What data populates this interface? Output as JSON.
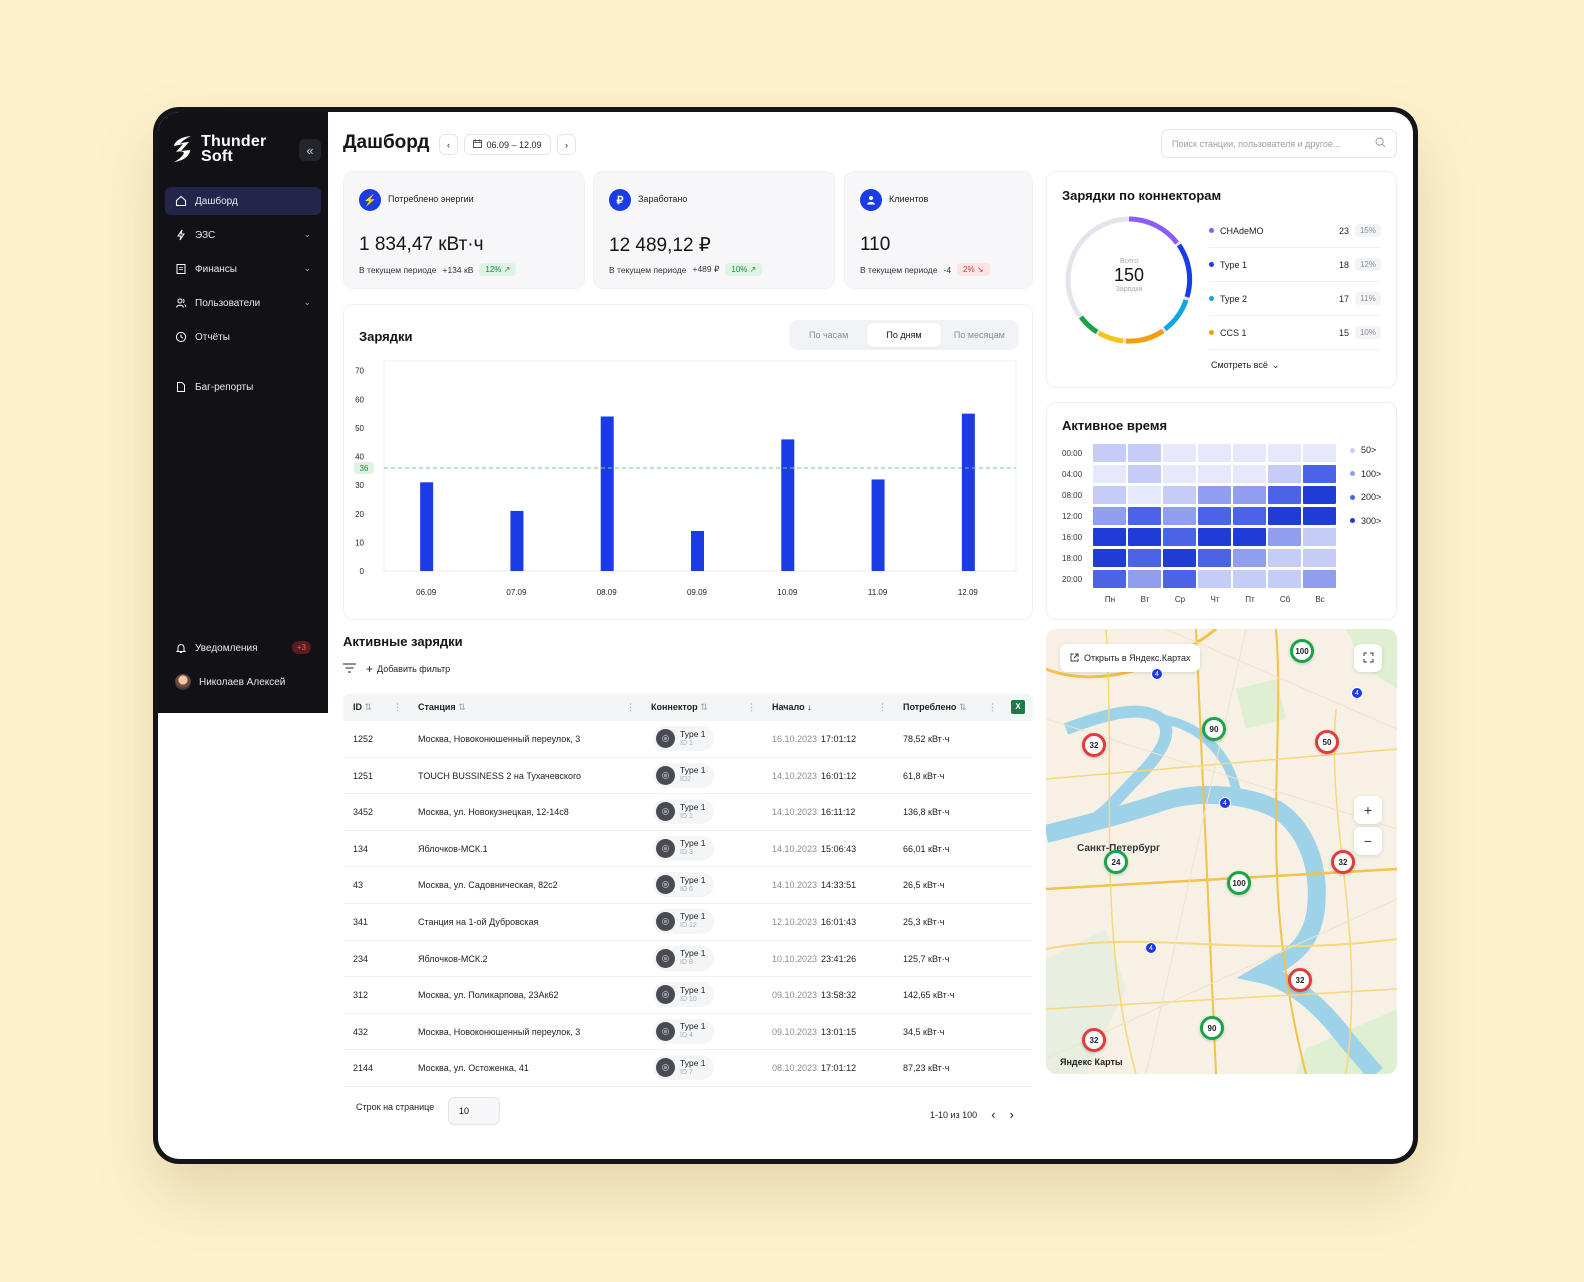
{
  "brand": {
    "line1": "Thunder",
    "line2": "Soft"
  },
  "sidebar": {
    "items": [
      {
        "label": "Дашборд",
        "icon": "home-icon",
        "active": true
      },
      {
        "label": "ЭЗС",
        "icon": "bolt-icon",
        "expandable": true
      },
      {
        "label": "Финансы",
        "icon": "receipt-icon",
        "expandable": true
      },
      {
        "label": "Пользователи",
        "icon": "users-icon",
        "expandable": true
      },
      {
        "label": "Отчёты",
        "icon": "clock-icon"
      },
      {
        "label": "Баг-репорты",
        "icon": "file-icon"
      }
    ],
    "notifications": {
      "label": "Уведомления",
      "badge": "+3"
    },
    "user": {
      "name": "Николаев Алексей"
    }
  },
  "header": {
    "title": "Дашборд",
    "date_range": "06.09 – 12.09",
    "search_placeholder": "Поиск станции, пользователя и другое..."
  },
  "stats": [
    {
      "label": "Потреблено энергии",
      "icon": "bolt-icon",
      "value": "1 834,47 кВт·ч",
      "period_label": "В текущем периоде",
      "delta": "+134 кВ",
      "pct": "12%",
      "trend": "up"
    },
    {
      "label": "Заработано",
      "icon": "ruble-icon",
      "value": "12 489,12 ₽",
      "period_label": "В текущем периоде",
      "delta": "+489 ₽",
      "pct": "10%",
      "trend": "up"
    },
    {
      "label": "Клиентов",
      "icon": "user-icon",
      "value": "110",
      "period_label": "В текущем периоде",
      "delta": "-4",
      "pct": "2%",
      "trend": "down"
    }
  ],
  "charges_chart": {
    "title": "Зарядки",
    "tabs": [
      "По часам",
      "По дням",
      "По месяцам"
    ],
    "active_tab": "По дням"
  },
  "chart_data": {
    "type": "bar",
    "categories": [
      "06.09",
      "07.09",
      "08.09",
      "09.09",
      "10.09",
      "11.09",
      "12.09"
    ],
    "values": [
      31,
      21,
      54,
      14,
      46,
      32,
      55
    ],
    "yticks": [
      0,
      10,
      20,
      30,
      40,
      50,
      60,
      70
    ],
    "ylim": [
      0,
      72
    ],
    "reference_line": {
      "value": 36,
      "label": "36"
    },
    "bar_color": "#1a3be6",
    "grid": false
  },
  "connectors": {
    "title": "Зарядки по коннекторам",
    "total_label": "Всего",
    "total": "150",
    "total_unit": "Зарядки",
    "items": [
      {
        "name": "CHAdeMO",
        "count": "23",
        "pct": "15%",
        "color": "#8b5cf6"
      },
      {
        "name": "Type 1",
        "count": "18",
        "pct": "12%",
        "color": "#1a3be6"
      },
      {
        "name": "Type 2",
        "count": "17",
        "pct": "11%",
        "color": "#0ea5e9"
      },
      {
        "name": "CCS 1",
        "count": "15",
        "pct": "10%",
        "color": "#f59e0b"
      }
    ],
    "see_all": "Смотреть всё"
  },
  "active_time": {
    "title": "Активное время",
    "rows": [
      "00:00",
      "04:00",
      "08:00",
      "12:00",
      "16:00",
      "18:00",
      "20:00"
    ],
    "cols": [
      "Пн",
      "Вт",
      "Ср",
      "Чт",
      "Пт",
      "Сб",
      "Вс"
    ],
    "legend": [
      "50>",
      "100>",
      "200>",
      "300>"
    ],
    "levels": [
      [
        1,
        1,
        0,
        0,
        0,
        0,
        0
      ],
      [
        0,
        1,
        0,
        0,
        0,
        1,
        3
      ],
      [
        1,
        0,
        1,
        2,
        2,
        3,
        4
      ],
      [
        2,
        3,
        2,
        3,
        3,
        4,
        4
      ],
      [
        4,
        4,
        3,
        4,
        4,
        2,
        1
      ],
      [
        4,
        3,
        4,
        3,
        2,
        1,
        1
      ],
      [
        3,
        2,
        3,
        1,
        1,
        1,
        2
      ]
    ],
    "palette": [
      "#e6e9fb",
      "#c5ccf6",
      "#8f9eee",
      "#4b63e6",
      "#1f3dd6"
    ]
  },
  "active_charges": {
    "title": "Активные зарядки",
    "add_filter": "Добавить фильтр",
    "columns": [
      "ID",
      "Станция",
      "Коннектор",
      "Начало",
      "Потреблено"
    ],
    "rows": [
      {
        "id": "1252",
        "station": "Москва, Новоконюшенный переулок, 3",
        "connector": "Type 1",
        "cid": "ID 1",
        "date": "16.10.2023",
        "time": "17:01:12",
        "energy": "78,52 кВт·ч"
      },
      {
        "id": "1251",
        "station": "TOUCH BUSSINESS 2 на Тухачевского",
        "connector": "Type 1",
        "cid": "ID2",
        "date": "14.10.2023",
        "time": "16:01:12",
        "energy": "61,8 кВт·ч"
      },
      {
        "id": "3452",
        "station": "Москва, ул. Новокузнецкая, 12-14с8",
        "connector": "Type 1",
        "cid": "ID 1",
        "date": "14.10.2023",
        "time": "16:11:12",
        "energy": "136,8 кВт·ч"
      },
      {
        "id": "134",
        "station": "Яблочков-МСК.1",
        "connector": "Type 1",
        "cid": "ID 3",
        "date": "14.10.2023",
        "time": "15:06:43",
        "energy": "66,01 кВт·ч"
      },
      {
        "id": "43",
        "station": "Москва, ул. Садовническая, 82с2",
        "connector": "Type 1",
        "cid": "ID 6",
        "date": "14.10.2023",
        "time": "14:33:51",
        "energy": "26,5 кВт·ч"
      },
      {
        "id": "341",
        "station": "Станция на 1-ой Дубровская",
        "connector": "Type 1",
        "cid": "ID 12",
        "date": "12.10.2023",
        "time": "16:01:43",
        "energy": "25,3 кВт·ч"
      },
      {
        "id": "234",
        "station": "Яблочков-МСК.2",
        "connector": "Type 1",
        "cid": "ID 8",
        "date": "10.10.2023",
        "time": "23:41:26",
        "energy": "125,7 кВт·ч"
      },
      {
        "id": "312",
        "station": "Москва, ул. Поликарпова, 23Ак62",
        "connector": "Type 1",
        "cid": "ID 10",
        "date": "09.10.2023",
        "time": "13:58:32",
        "energy": "142,65 кВт·ч"
      },
      {
        "id": "432",
        "station": "Москва, Новоконюшенный переулок, 3",
        "connector": "Type 1",
        "cid": "ID 4",
        "date": "09.10.2023",
        "time": "13:01:15",
        "energy": "34,5 кВт·ч"
      },
      {
        "id": "2144",
        "station": "Москва, ул. Остоженка, 41",
        "connector": "Type 1",
        "cid": "ID 7",
        "date": "08.10.2023",
        "time": "17:01:12",
        "energy": "87,23 кВт·ч"
      }
    ],
    "rows_per_page_label": "Строк на странице",
    "rows_per_page": "10",
    "range": "1-10 из 100"
  },
  "map": {
    "open_label": "Открыть в Яндекс.Картах",
    "city_label": "Санкт-Петербург",
    "attribution": "Яндекс Карты",
    "markers": [
      {
        "value": "100",
        "color": "#1aa34a"
      },
      {
        "value": "32",
        "color": "#e23b3b"
      },
      {
        "value": "90",
        "color": "#1aa34a"
      },
      {
        "value": "50",
        "color": "#e23b3b"
      },
      {
        "value": "24",
        "color": "#1aa34a"
      },
      {
        "value": "100",
        "color": "#1aa34a"
      },
      {
        "value": "32",
        "color": "#e23b3b"
      },
      {
        "value": "32",
        "color": "#e23b3b"
      },
      {
        "value": "90",
        "color": "#1aa34a"
      },
      {
        "value": "32",
        "color": "#e23b3b"
      }
    ],
    "clusters": [
      "4",
      "4",
      "4",
      "4"
    ]
  }
}
